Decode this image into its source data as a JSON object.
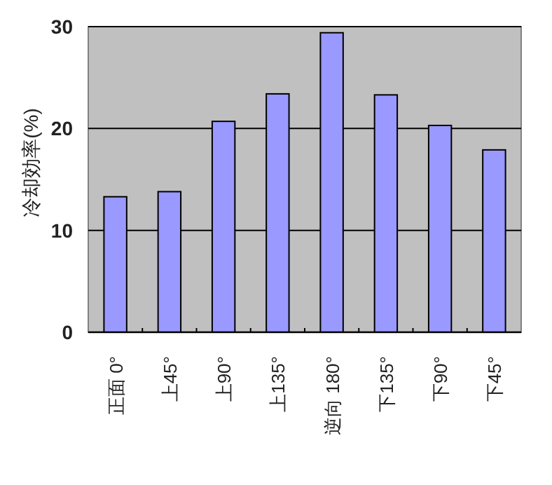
{
  "chart_data": {
    "type": "bar",
    "ylabel": "冷却効率(%)",
    "categories": [
      "正面 0°",
      "上45°",
      "上90°",
      "上135°",
      "逆向 180°",
      "下135°",
      "下90°",
      "下45°"
    ],
    "values": [
      13.3,
      13.8,
      20.7,
      23.4,
      29.4,
      23.3,
      20.3,
      17.9
    ],
    "color": "#9999ff",
    "ylim": [
      0,
      30
    ],
    "yticks": [
      0,
      10,
      20,
      30
    ],
    "grid": "y"
  }
}
